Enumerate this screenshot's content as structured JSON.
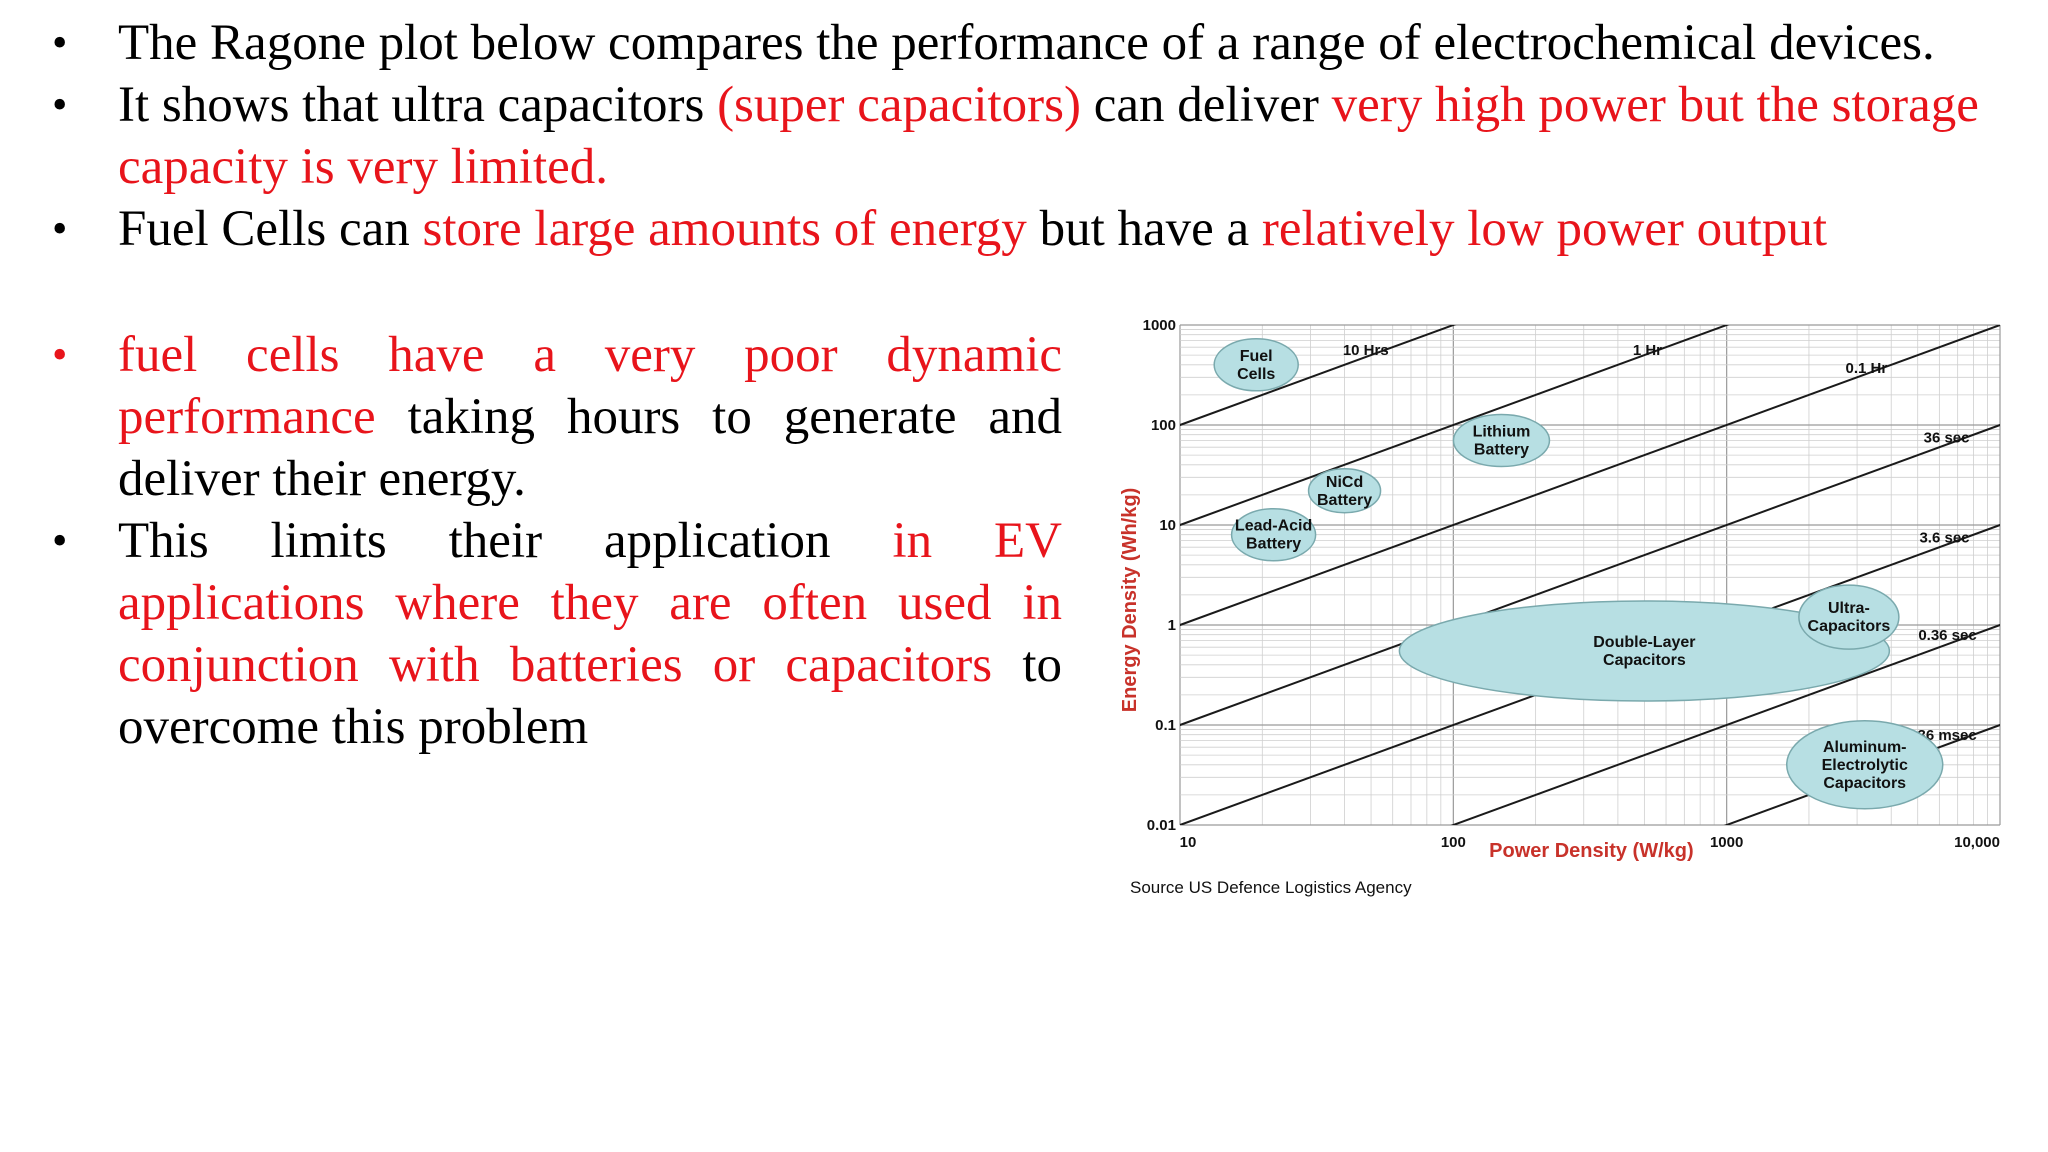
{
  "top_bullets": [
    {
      "segments": [
        {
          "text": "The Ragone plot below compares the performance of a range of electrochemical devices.",
          "red": false
        }
      ]
    },
    {
      "segments": [
        {
          "text": "It shows that ultra capacitors ",
          "red": false
        },
        {
          "text": "(super capacitors)",
          "red": true
        },
        {
          "text": " can deliver ",
          "red": false
        },
        {
          "text": "very high power but the storage capacity is very limited.",
          "red": true
        }
      ]
    },
    {
      "segments": [
        {
          "text": "Fuel Cells can ",
          "red": false
        },
        {
          "text": "store large amounts of energy",
          "red": true
        },
        {
          "text": " but have a ",
          "red": false
        },
        {
          "text": "relatively low power output",
          "red": true
        }
      ]
    }
  ],
  "left_bullets": [
    {
      "segments": [
        {
          "text": "fuel cells have a very poor dynamic performance",
          "red": true
        },
        {
          "text": " taking hours to generate and deliver their energy.",
          "red": false
        }
      ]
    },
    {
      "segments": [
        {
          "text": "This limits their application ",
          "red": false
        },
        {
          "text": "in EV applications where they are often used in conjunction with batteries or capacitors",
          "red": true
        },
        {
          "text": " to overcome this problem",
          "red": false
        }
      ]
    }
  ],
  "bullet_glyph": "•",
  "colors": {
    "text": "#000000",
    "emphasis": "#e8141b",
    "region_fill": "#b7dfe3",
    "axis_title": "#c8322a"
  },
  "chart_data": {
    "type": "scatter",
    "scale": "log-log",
    "xlabel": "Power Density (W/kg)",
    "ylabel": "Energy Density (Wh/kg)",
    "xlim": [
      10,
      10000
    ],
    "ylim": [
      0.01,
      1000
    ],
    "x_ticks": [
      "10",
      "100",
      "1000",
      "10,000"
    ],
    "y_ticks": [
      "1000",
      "100",
      "10",
      "1",
      "0.1",
      "0.01"
    ],
    "time_lines": [
      "10 Hrs",
      "1 Hr",
      "0.1 Hr",
      "36 sec",
      "3.6 sec",
      "0.36 sec",
      "36 msec"
    ],
    "regions": [
      {
        "label": "Fuel Cells",
        "x": 19,
        "y": 400
      },
      {
        "label": "Lead-Acid Battery",
        "x": 22,
        "y": 8
      },
      {
        "label": "NiCd Battery",
        "x": 40,
        "y": 22
      },
      {
        "label": "Lithium Battery",
        "x": 150,
        "y": 70
      },
      {
        "label": "Double-Layer Capacitors",
        "x": 500,
        "y": 0.55
      },
      {
        "label": "Ultra- Capacitors",
        "x": 2800,
        "y": 1.2
      },
      {
        "label": "Aluminum- Electrolytic Capacitors",
        "x": 3200,
        "y": 0.04
      }
    ],
    "grid": true,
    "source": "Source US Defence Logistics Agency"
  }
}
